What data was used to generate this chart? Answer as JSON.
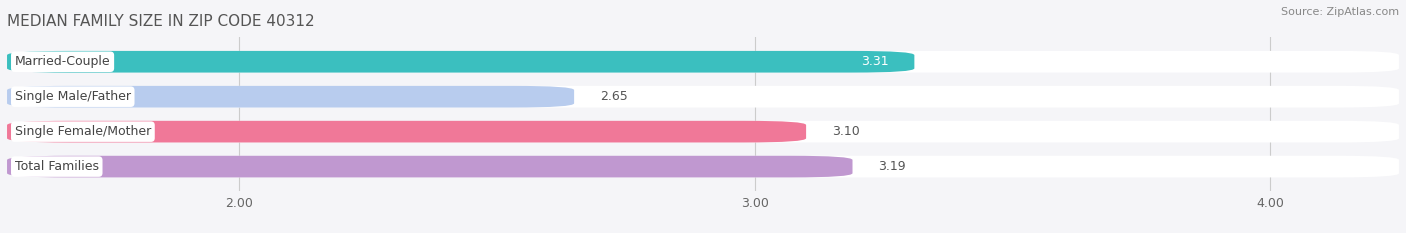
{
  "title": "MEDIAN FAMILY SIZE IN ZIP CODE 40312",
  "source": "Source: ZipAtlas.com",
  "categories": [
    "Married-Couple",
    "Single Male/Father",
    "Single Female/Mother",
    "Total Families"
  ],
  "values": [
    3.31,
    2.65,
    3.1,
    3.19
  ],
  "bar_colors": [
    "#3bbfbf",
    "#b8ccee",
    "#f07898",
    "#c098d0"
  ],
  "xlim_start": 1.55,
  "xlim_end": 4.25,
  "xticks": [
    2.0,
    3.0,
    4.0
  ],
  "xtick_labels": [
    "2.00",
    "3.00",
    "4.00"
  ],
  "bar_height": 0.62,
  "bar_gap": 0.38,
  "figure_bg": "#f5f5f8",
  "bar_bg_color": "#ffffff",
  "label_box_color": "#ffffff",
  "label_text_color": "#444444",
  "value_text_color_inside": "#ffffff",
  "value_text_color_outside": "#555555",
  "grid_color": "#cccccc",
  "title_color": "#555555",
  "source_color": "#888888",
  "title_fontsize": 11,
  "source_fontsize": 8,
  "label_fontsize": 9,
  "value_fontsize": 9,
  "tick_fontsize": 9
}
